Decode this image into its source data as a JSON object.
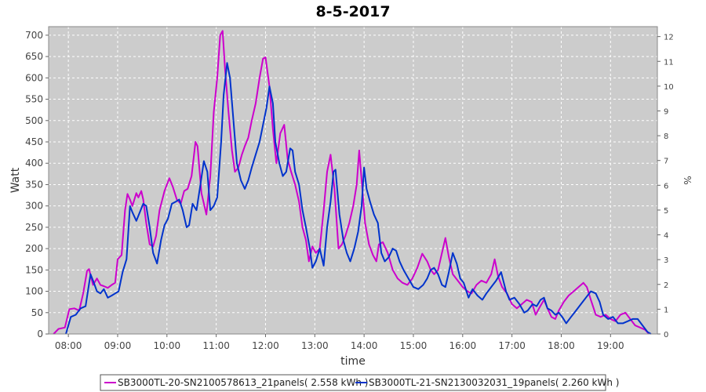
{
  "chart_data": {
    "type": "line",
    "title": "8-5-2017",
    "xlabel": "time",
    "ylabel": "Watt",
    "y2label": "%",
    "xlim": [
      7.6,
      19.95
    ],
    "ylim": [
      0,
      720
    ],
    "y2lim": [
      0,
      12.4
    ],
    "x_ticks": [
      8,
      9,
      10,
      11,
      12,
      13,
      14,
      15,
      16,
      17,
      18,
      19
    ],
    "x_tick_labels": [
      "08:00",
      "09:00",
      "10:00",
      "11:00",
      "12:00",
      "13:00",
      "14:00",
      "15:00",
      "16:00",
      "17:00",
      "18:00",
      "19:00"
    ],
    "y_ticks": [
      0,
      50,
      100,
      150,
      200,
      250,
      300,
      350,
      400,
      450,
      500,
      550,
      600,
      650,
      700
    ],
    "y2_ticks": [
      0,
      1,
      2,
      3,
      4,
      5,
      6,
      7,
      8,
      9,
      10,
      11,
      12
    ],
    "grid": true,
    "background": "#cccccc",
    "legend_position": "bottom",
    "series": [
      {
        "name": "SB3000TL-20-SN2100578613_21panels( 2.558 kWh )",
        "color": "#cc00cc",
        "points": [
          [
            7.7,
            0
          ],
          [
            7.8,
            12
          ],
          [
            7.93,
            15
          ],
          [
            8.02,
            58
          ],
          [
            8.12,
            60
          ],
          [
            8.22,
            55
          ],
          [
            8.3,
            95
          ],
          [
            8.38,
            148
          ],
          [
            8.42,
            152
          ],
          [
            8.5,
            115
          ],
          [
            8.58,
            130
          ],
          [
            8.65,
            115
          ],
          [
            8.72,
            112
          ],
          [
            8.8,
            108
          ],
          [
            8.88,
            115
          ],
          [
            8.95,
            120
          ],
          [
            9.0,
            175
          ],
          [
            9.08,
            185
          ],
          [
            9.15,
            290
          ],
          [
            9.2,
            328
          ],
          [
            9.25,
            315
          ],
          [
            9.3,
            300
          ],
          [
            9.38,
            330
          ],
          [
            9.42,
            320
          ],
          [
            9.48,
            335
          ],
          [
            9.52,
            315
          ],
          [
            9.58,
            260
          ],
          [
            9.65,
            210
          ],
          [
            9.72,
            205
          ],
          [
            9.78,
            230
          ],
          [
            9.85,
            290
          ],
          [
            9.95,
            335
          ],
          [
            10.05,
            365
          ],
          [
            10.12,
            345
          ],
          [
            10.2,
            315
          ],
          [
            10.28,
            305
          ],
          [
            10.35,
            335
          ],
          [
            10.42,
            340
          ],
          [
            10.5,
            370
          ],
          [
            10.58,
            450
          ],
          [
            10.62,
            440
          ],
          [
            10.7,
            330
          ],
          [
            10.8,
            280
          ],
          [
            10.88,
            370
          ],
          [
            10.95,
            520
          ],
          [
            11.02,
            600
          ],
          [
            11.08,
            700
          ],
          [
            11.13,
            710
          ],
          [
            11.18,
            620
          ],
          [
            11.25,
            520
          ],
          [
            11.32,
            430
          ],
          [
            11.38,
            380
          ],
          [
            11.45,
            390
          ],
          [
            11.52,
            420
          ],
          [
            11.58,
            440
          ],
          [
            11.65,
            460
          ],
          [
            11.72,
            500
          ],
          [
            11.8,
            540
          ],
          [
            11.88,
            600
          ],
          [
            11.95,
            645
          ],
          [
            12.0,
            648
          ],
          [
            12.08,
            580
          ],
          [
            12.15,
            480
          ],
          [
            12.22,
            400
          ],
          [
            12.3,
            470
          ],
          [
            12.38,
            490
          ],
          [
            12.45,
            410
          ],
          [
            12.52,
            380
          ],
          [
            12.6,
            350
          ],
          [
            12.68,
            310
          ],
          [
            12.75,
            250
          ],
          [
            12.82,
            220
          ],
          [
            12.88,
            170
          ],
          [
            12.95,
            205
          ],
          [
            13.02,
            190
          ],
          [
            13.1,
            200
          ],
          [
            13.18,
            290
          ],
          [
            13.25,
            380
          ],
          [
            13.32,
            420
          ],
          [
            13.4,
            340
          ],
          [
            13.48,
            200
          ],
          [
            13.55,
            210
          ],
          [
            13.62,
            230
          ],
          [
            13.7,
            260
          ],
          [
            13.78,
            300
          ],
          [
            13.85,
            350
          ],
          [
            13.9,
            430
          ],
          [
            13.95,
            360
          ],
          [
            14.02,
            260
          ],
          [
            14.1,
            210
          ],
          [
            14.18,
            185
          ],
          [
            14.25,
            170
          ],
          [
            14.3,
            210
          ],
          [
            14.38,
            215
          ],
          [
            14.48,
            190
          ],
          [
            14.58,
            150
          ],
          [
            14.68,
            130
          ],
          [
            14.78,
            120
          ],
          [
            14.88,
            115
          ],
          [
            14.98,
            130
          ],
          [
            15.08,
            155
          ],
          [
            15.18,
            188
          ],
          [
            15.28,
            170
          ],
          [
            15.35,
            150
          ],
          [
            15.42,
            140
          ],
          [
            15.5,
            150
          ],
          [
            15.58,
            190
          ],
          [
            15.65,
            225
          ],
          [
            15.72,
            180
          ],
          [
            15.8,
            140
          ],
          [
            15.9,
            125
          ],
          [
            16.0,
            110
          ],
          [
            16.1,
            100
          ],
          [
            16.18,
            95
          ],
          [
            16.28,
            115
          ],
          [
            16.38,
            125
          ],
          [
            16.48,
            120
          ],
          [
            16.58,
            140
          ],
          [
            16.65,
            175
          ],
          [
            16.72,
            135
          ],
          [
            16.8,
            110
          ],
          [
            16.9,
            95
          ],
          [
            17.0,
            70
          ],
          [
            17.1,
            60
          ],
          [
            17.2,
            70
          ],
          [
            17.3,
            80
          ],
          [
            17.4,
            75
          ],
          [
            17.48,
            45
          ],
          [
            17.55,
            60
          ],
          [
            17.65,
            80
          ],
          [
            17.72,
            60
          ],
          [
            17.8,
            40
          ],
          [
            17.88,
            35
          ],
          [
            17.95,
            55
          ],
          [
            18.05,
            75
          ],
          [
            18.15,
            90
          ],
          [
            18.25,
            100
          ],
          [
            18.35,
            110
          ],
          [
            18.45,
            120
          ],
          [
            18.52,
            110
          ],
          [
            18.6,
            80
          ],
          [
            18.7,
            45
          ],
          [
            18.8,
            40
          ],
          [
            18.9,
            45
          ],
          [
            19.0,
            35
          ],
          [
            19.1,
            30
          ],
          [
            19.2,
            45
          ],
          [
            19.3,
            50
          ],
          [
            19.4,
            35
          ],
          [
            19.5,
            20
          ],
          [
            19.6,
            15
          ],
          [
            19.7,
            10
          ],
          [
            19.78,
            0
          ]
        ]
      },
      {
        "name": "SB3000TL-21-SN2130032031_19panels( 2.260 kWh )",
        "color": "#0033cc",
        "points": [
          [
            7.95,
            0
          ],
          [
            8.05,
            40
          ],
          [
            8.15,
            45
          ],
          [
            8.25,
            60
          ],
          [
            8.35,
            65
          ],
          [
            8.45,
            140
          ],
          [
            8.5,
            125
          ],
          [
            8.58,
            100
          ],
          [
            8.65,
            95
          ],
          [
            8.72,
            105
          ],
          [
            8.8,
            85
          ],
          [
            8.88,
            90
          ],
          [
            8.95,
            95
          ],
          [
            9.02,
            100
          ],
          [
            9.1,
            145
          ],
          [
            9.18,
            175
          ],
          [
            9.25,
            300
          ],
          [
            9.3,
            285
          ],
          [
            9.38,
            265
          ],
          [
            9.45,
            285
          ],
          [
            9.52,
            305
          ],
          [
            9.58,
            300
          ],
          [
            9.65,
            250
          ],
          [
            9.72,
            190
          ],
          [
            9.8,
            165
          ],
          [
            9.88,
            220
          ],
          [
            9.95,
            255
          ],
          [
            10.02,
            270
          ],
          [
            10.1,
            305
          ],
          [
            10.18,
            310
          ],
          [
            10.25,
            315
          ],
          [
            10.32,
            290
          ],
          [
            10.4,
            250
          ],
          [
            10.45,
            255
          ],
          [
            10.52,
            305
          ],
          [
            10.6,
            290
          ],
          [
            10.68,
            350
          ],
          [
            10.75,
            405
          ],
          [
            10.82,
            380
          ],
          [
            10.88,
            290
          ],
          [
            10.95,
            300
          ],
          [
            11.02,
            320
          ],
          [
            11.1,
            450
          ],
          [
            11.15,
            560
          ],
          [
            11.22,
            635
          ],
          [
            11.28,
            600
          ],
          [
            11.35,
            500
          ],
          [
            11.42,
            400
          ],
          [
            11.5,
            360
          ],
          [
            11.58,
            340
          ],
          [
            11.65,
            360
          ],
          [
            11.72,
            390
          ],
          [
            11.8,
            420
          ],
          [
            11.88,
            450
          ],
          [
            11.95,
            490
          ],
          [
            12.02,
            530
          ],
          [
            12.08,
            580
          ],
          [
            12.15,
            540
          ],
          [
            12.2,
            450
          ],
          [
            12.28,
            400
          ],
          [
            12.35,
            370
          ],
          [
            12.42,
            380
          ],
          [
            12.5,
            435
          ],
          [
            12.55,
            430
          ],
          [
            12.6,
            380
          ],
          [
            12.68,
            350
          ],
          [
            12.75,
            290
          ],
          [
            12.82,
            250
          ],
          [
            12.9,
            200
          ],
          [
            12.95,
            155
          ],
          [
            13.02,
            170
          ],
          [
            13.1,
            200
          ],
          [
            13.18,
            160
          ],
          [
            13.25,
            250
          ],
          [
            13.32,
            310
          ],
          [
            13.38,
            380
          ],
          [
            13.42,
            385
          ],
          [
            13.5,
            280
          ],
          [
            13.58,
            220
          ],
          [
            13.65,
            190
          ],
          [
            13.72,
            170
          ],
          [
            13.8,
            200
          ],
          [
            13.88,
            240
          ],
          [
            13.95,
            300
          ],
          [
            14.0,
            390
          ],
          [
            14.05,
            340
          ],
          [
            14.12,
            310
          ],
          [
            14.2,
            280
          ],
          [
            14.28,
            260
          ],
          [
            14.35,
            190
          ],
          [
            14.42,
            170
          ],
          [
            14.5,
            180
          ],
          [
            14.58,
            200
          ],
          [
            14.65,
            195
          ],
          [
            14.72,
            170
          ],
          [
            14.8,
            150
          ],
          [
            14.9,
            130
          ],
          [
            15.0,
            110
          ],
          [
            15.1,
            105
          ],
          [
            15.2,
            115
          ],
          [
            15.28,
            130
          ],
          [
            15.35,
            150
          ],
          [
            15.42,
            155
          ],
          [
            15.5,
            140
          ],
          [
            15.58,
            115
          ],
          [
            15.65,
            110
          ],
          [
            15.72,
            145
          ],
          [
            15.8,
            190
          ],
          [
            15.88,
            165
          ],
          [
            15.95,
            130
          ],
          [
            16.02,
            120
          ],
          [
            16.12,
            85
          ],
          [
            16.2,
            105
          ],
          [
            16.3,
            90
          ],
          [
            16.4,
            80
          ],
          [
            16.48,
            95
          ],
          [
            16.58,
            110
          ],
          [
            16.68,
            125
          ],
          [
            16.78,
            145
          ],
          [
            16.88,
            100
          ],
          [
            16.95,
            80
          ],
          [
            17.05,
            85
          ],
          [
            17.15,
            70
          ],
          [
            17.25,
            50
          ],
          [
            17.32,
            55
          ],
          [
            17.42,
            70
          ],
          [
            17.5,
            65
          ],
          [
            17.58,
            80
          ],
          [
            17.65,
            85
          ],
          [
            17.72,
            60
          ],
          [
            17.8,
            55
          ],
          [
            17.88,
            45
          ],
          [
            17.95,
            50
          ],
          [
            18.02,
            40
          ],
          [
            18.1,
            25
          ],
          [
            18.2,
            40
          ],
          [
            18.3,
            55
          ],
          [
            18.4,
            70
          ],
          [
            18.5,
            85
          ],
          [
            18.6,
            100
          ],
          [
            18.7,
            95
          ],
          [
            18.78,
            75
          ],
          [
            18.85,
            45
          ],
          [
            18.95,
            35
          ],
          [
            19.05,
            40
          ],
          [
            19.15,
            25
          ],
          [
            19.25,
            25
          ],
          [
            19.35,
            30
          ],
          [
            19.45,
            35
          ],
          [
            19.55,
            35
          ],
          [
            19.65,
            20
          ],
          [
            19.75,
            5
          ],
          [
            19.82,
            0
          ]
        ]
      }
    ]
  }
}
